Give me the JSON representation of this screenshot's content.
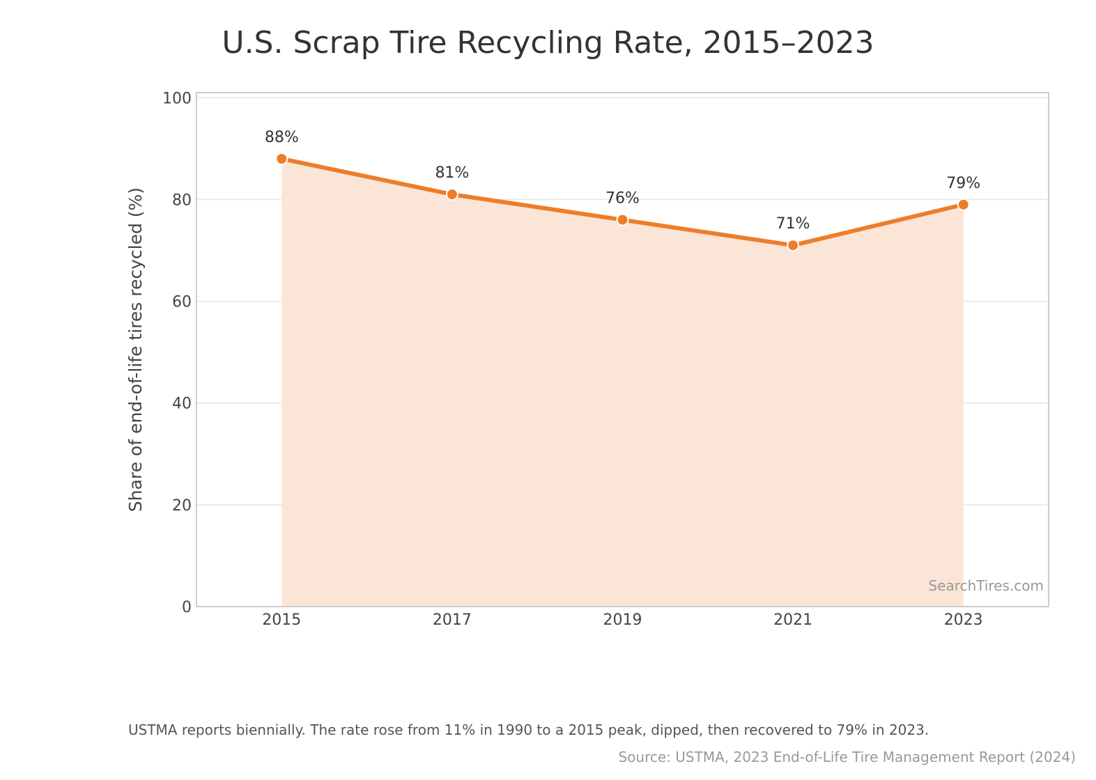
{
  "title": "U.S. Scrap Tire Recycling Rate, 2015–2023",
  "note": "USTMA reports biennially. The rate rose from 11% in 1990 to a 2015 peak, dipped, then recovered to 79% in 2023.",
  "source": "Source: USTMA, 2023 End-of-Life Tire Management Report (2024)",
  "watermark": "SearchTires.com",
  "colors": {
    "line": "#ee7d2a",
    "fill": "#fae5d7",
    "grid": "#e6e6e6",
    "frame": "#cccccc"
  },
  "chart_data": {
    "type": "area",
    "title": "U.S. Scrap Tire Recycling Rate, 2015–2023",
    "xlabel": "",
    "ylabel": "Share of end-of-life tires recycled (%)",
    "x": [
      2015,
      2017,
      2019,
      2021,
      2023
    ],
    "x_tick_labels": [
      "2015",
      "2017",
      "2019",
      "2021",
      "2023"
    ],
    "values": [
      88,
      81,
      76,
      71,
      79
    ],
    "data_labels": [
      "88%",
      "81%",
      "76%",
      "71%",
      "79%"
    ],
    "ylim": [
      0,
      101
    ],
    "y_ticks": [
      0,
      20,
      40,
      60,
      80,
      100
    ],
    "grid": "horizontal",
    "legend": "none"
  }
}
